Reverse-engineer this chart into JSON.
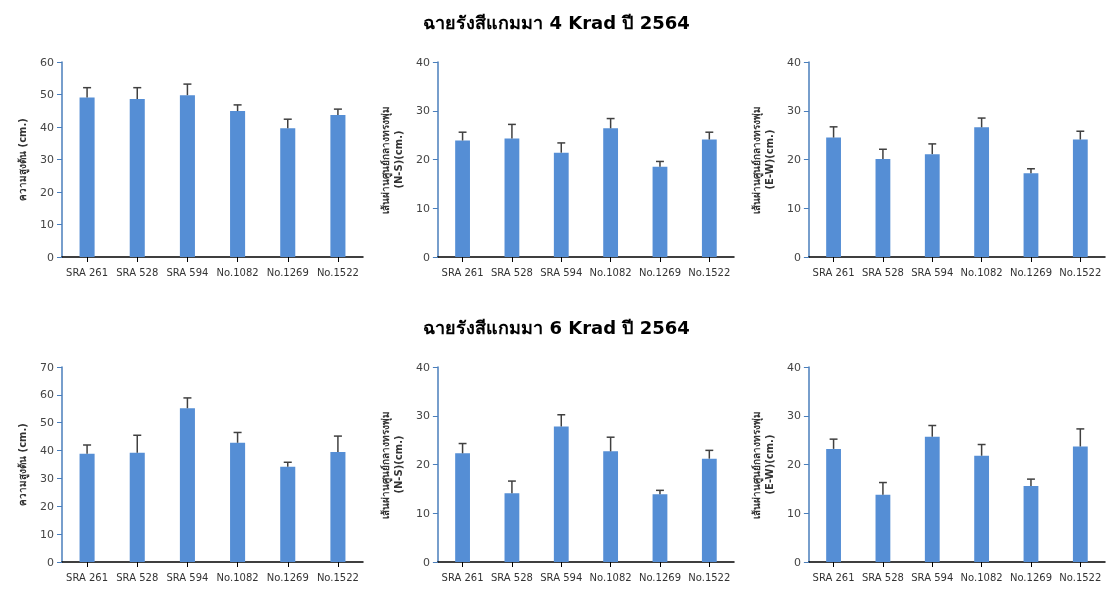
{
  "chart_data": [
    {
      "type": "bar",
      "ylabel": "ความสูงต้น (cm.)",
      "categories": [
        "SRA 261",
        "SRA 528",
        "SRA 594",
        "No.1082",
        "No.1269",
        "No.1522"
      ],
      "values": [
        49.1,
        48.6,
        49.8,
        44.9,
        39.6,
        43.7
      ],
      "errors": [
        [
          49.1,
          52.1
        ],
        [
          48.6,
          52.1
        ],
        [
          49.8,
          53.2
        ],
        [
          44.9,
          46.8
        ],
        [
          39.6,
          42.4
        ],
        [
          43.7,
          45.5
        ]
      ],
      "color": "#558ed5",
      "ylim": [
        0,
        60
      ],
      "yticks": [
        0,
        10,
        20,
        30,
        40,
        50,
        60
      ]
    },
    {
      "type": "bar",
      "title": "ฉายรังสีแกมมา 4 Krad ปี 2564",
      "ylabel": "เส้นผ่านศูนย์กลางทรงพุ่ม\n(N-S)(cm.)",
      "categories": [
        "SRA 261",
        "SRA 528",
        "SRA 594",
        "No.1082",
        "No.1269",
        "No.1522"
      ],
      "values": [
        23.9,
        24.3,
        21.4,
        26.4,
        18.5,
        24.1
      ],
      "errors": [
        [
          23.9,
          25.6
        ],
        [
          24.3,
          27.2
        ],
        [
          21.4,
          23.4
        ],
        [
          26.4,
          28.4
        ],
        [
          18.5,
          19.6
        ],
        [
          24.1,
          25.6
        ]
      ],
      "color": "#558ed5",
      "ylim": [
        0,
        40
      ],
      "yticks": [
        0,
        10,
        20,
        30,
        40
      ]
    },
    {
      "type": "bar",
      "ylabel": "เส้นผ่านศูนย์กลางทรงพุ่ม\n(E-W)(cm.)",
      "categories": [
        "SRA 261",
        "SRA 528",
        "SRA 594",
        "No.1082",
        "No.1269",
        "No.1522"
      ],
      "values": [
        24.5,
        20.1,
        21.1,
        26.6,
        17.2,
        24.1
      ],
      "errors": [
        [
          24.5,
          26.7
        ],
        [
          20.1,
          22.1
        ],
        [
          21.1,
          23.2
        ],
        [
          26.6,
          28.5
        ],
        [
          17.2,
          18.1
        ],
        [
          24.1,
          25.8
        ]
      ],
      "color": "#558ed5",
      "ylim": [
        0,
        40
      ],
      "yticks": [
        0,
        10,
        20,
        30,
        40
      ]
    },
    {
      "type": "bar",
      "ylabel": "ความสูงต้น (cm.)",
      "categories": [
        "SRA 261",
        "SRA 528",
        "SRA 594",
        "No.1082",
        "No.1269",
        "No.1522"
      ],
      "values": [
        38.9,
        39.2,
        55.2,
        42.8,
        34.2,
        39.5
      ],
      "errors": [
        [
          38.9,
          42.0
        ],
        [
          39.2,
          45.5
        ],
        [
          55.2,
          58.9
        ],
        [
          42.8,
          46.5
        ],
        [
          34.2,
          35.8
        ],
        [
          39.5,
          45.2
        ]
      ],
      "color": "#558ed5",
      "ylim": [
        0,
        70
      ],
      "yticks": [
        0,
        10,
        20,
        30,
        40,
        50,
        60,
        70
      ]
    },
    {
      "type": "bar",
      "title": "ฉายรังสีแกมมา 6 Krad ปี 2564",
      "ylabel": "เส้นผ่านศูนย์กลางทรงพุ่ม\n(N-S)(cm.)",
      "categories": [
        "SRA 261",
        "SRA 528",
        "SRA 594",
        "No.1082",
        "No.1269",
        "No.1522"
      ],
      "values": [
        22.3,
        14.1,
        27.8,
        22.7,
        13.9,
        21.2
      ],
      "errors": [
        [
          22.3,
          24.3
        ],
        [
          14.1,
          16.6
        ],
        [
          27.8,
          30.2
        ],
        [
          22.7,
          25.6
        ],
        [
          13.9,
          14.7
        ],
        [
          21.2,
          22.9
        ]
      ],
      "color": "#558ed5",
      "ylim": [
        0,
        40
      ],
      "yticks": [
        0,
        10,
        20,
        30,
        40
      ]
    },
    {
      "type": "bar",
      "ylabel": "เส้นผ่านศูนย์กลางทรงพุ่ม\n(E-W)(cm.)",
      "categories": [
        "SRA 261",
        "SRA 528",
        "SRA 594",
        "No.1082",
        "No.1269",
        "No.1522"
      ],
      "values": [
        23.2,
        13.8,
        25.7,
        21.8,
        15.6,
        23.7
      ],
      "errors": [
        [
          23.2,
          25.2
        ],
        [
          13.8,
          16.3
        ],
        [
          25.7,
          28.0
        ],
        [
          21.8,
          24.1
        ],
        [
          15.6,
          17.0
        ],
        [
          23.7,
          27.3
        ]
      ],
      "color": "#558ed5",
      "ylim": [
        0,
        40
      ],
      "yticks": [
        0,
        10,
        20,
        30,
        40
      ]
    }
  ]
}
